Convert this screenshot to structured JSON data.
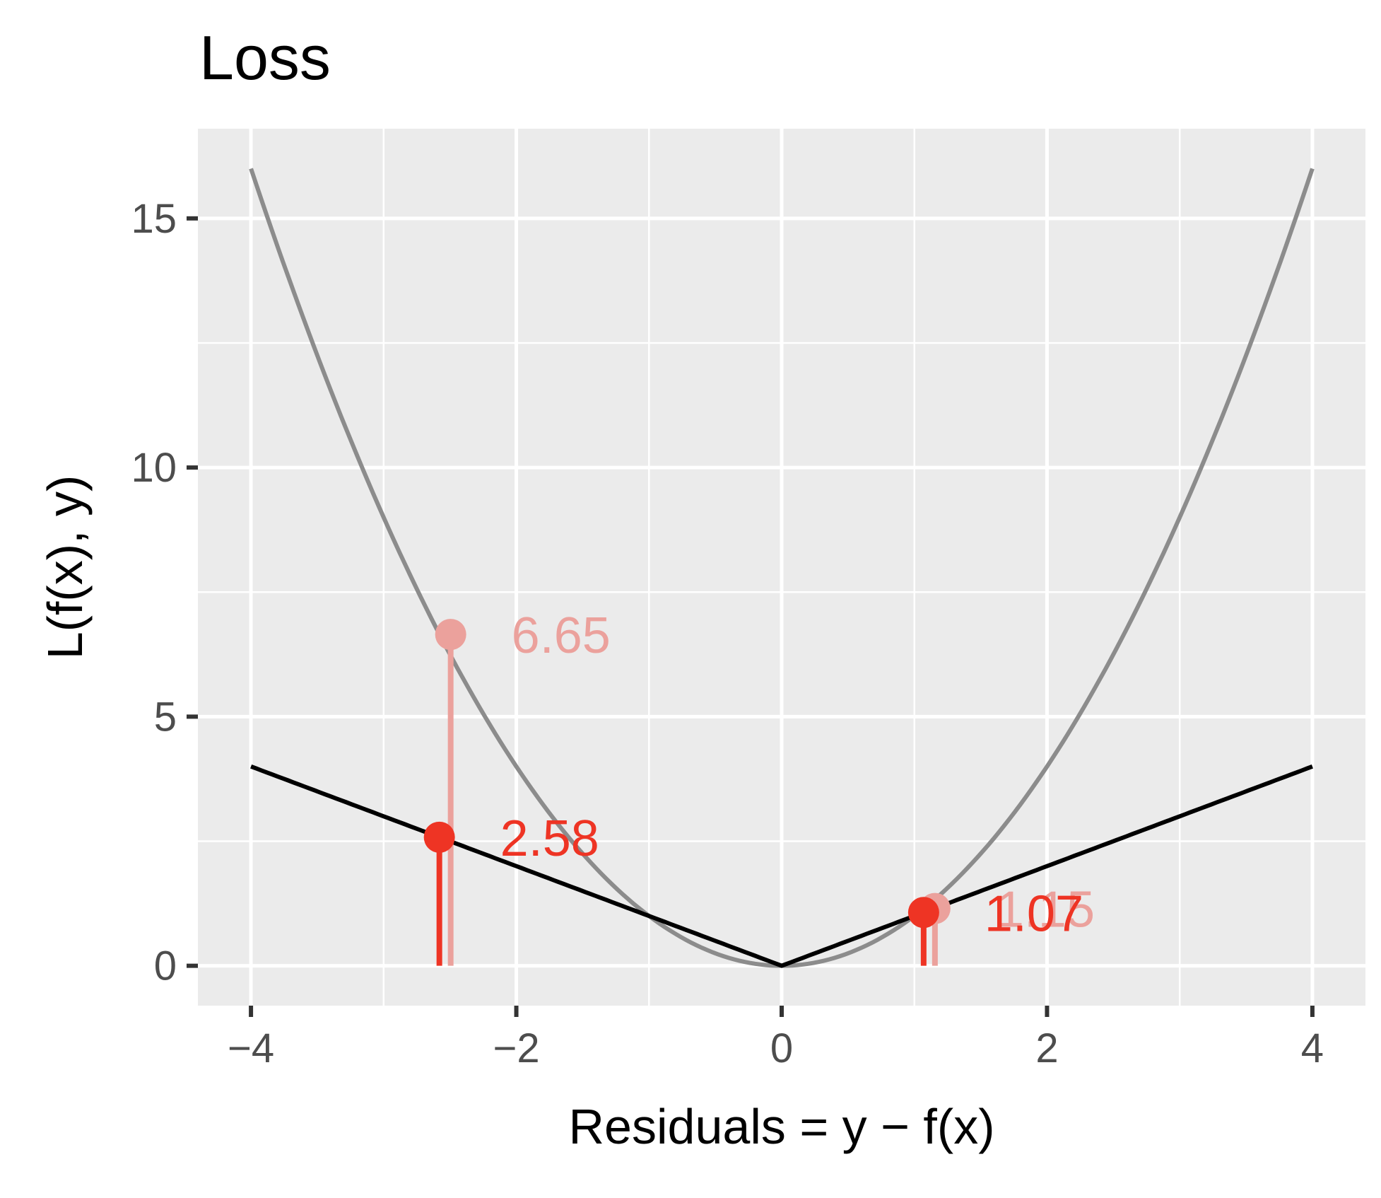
{
  "chart_data": {
    "type": "line",
    "title": "Loss",
    "xlabel": "Residuals = y − f(x)",
    "ylabel": "L(f(x), y)",
    "xlim": [
      -4.4,
      4.4
    ],
    "ylim": [
      -0.8,
      16.8
    ],
    "x_ticks": [
      -4,
      -2,
      0,
      2,
      4
    ],
    "x_tick_labels": [
      "−4",
      "−2",
      "0",
      "2",
      "4"
    ],
    "y_ticks": [
      0,
      5,
      10,
      15
    ],
    "y_tick_labels": [
      "0",
      "5",
      "10",
      "15"
    ],
    "x_minor_grid": [
      -3,
      -1,
      1,
      3
    ],
    "y_minor_grid": [
      2.5,
      7.5,
      12.5
    ],
    "grid": true,
    "background": "#ebebeb",
    "series": [
      {
        "function": "squared",
        "x_range": [
          -4,
          4
        ],
        "color": "#8c8c8c",
        "points": [
          {
            "x": -2.58,
            "y": 6.65,
            "label": "6.65"
          },
          {
            "x": 1.07,
            "y": 1.15,
            "label": "1.15"
          }
        ],
        "point_color": "#eba19c"
      },
      {
        "function": "absolute",
        "x_range": [
          -4,
          4
        ],
        "color": "#000000",
        "points": [
          {
            "x": -2.58,
            "y": 2.58,
            "label": "2.58"
          },
          {
            "x": 1.07,
            "y": 1.07,
            "label": "1.07"
          }
        ],
        "point_color": "#ee3424"
      }
    ]
  }
}
